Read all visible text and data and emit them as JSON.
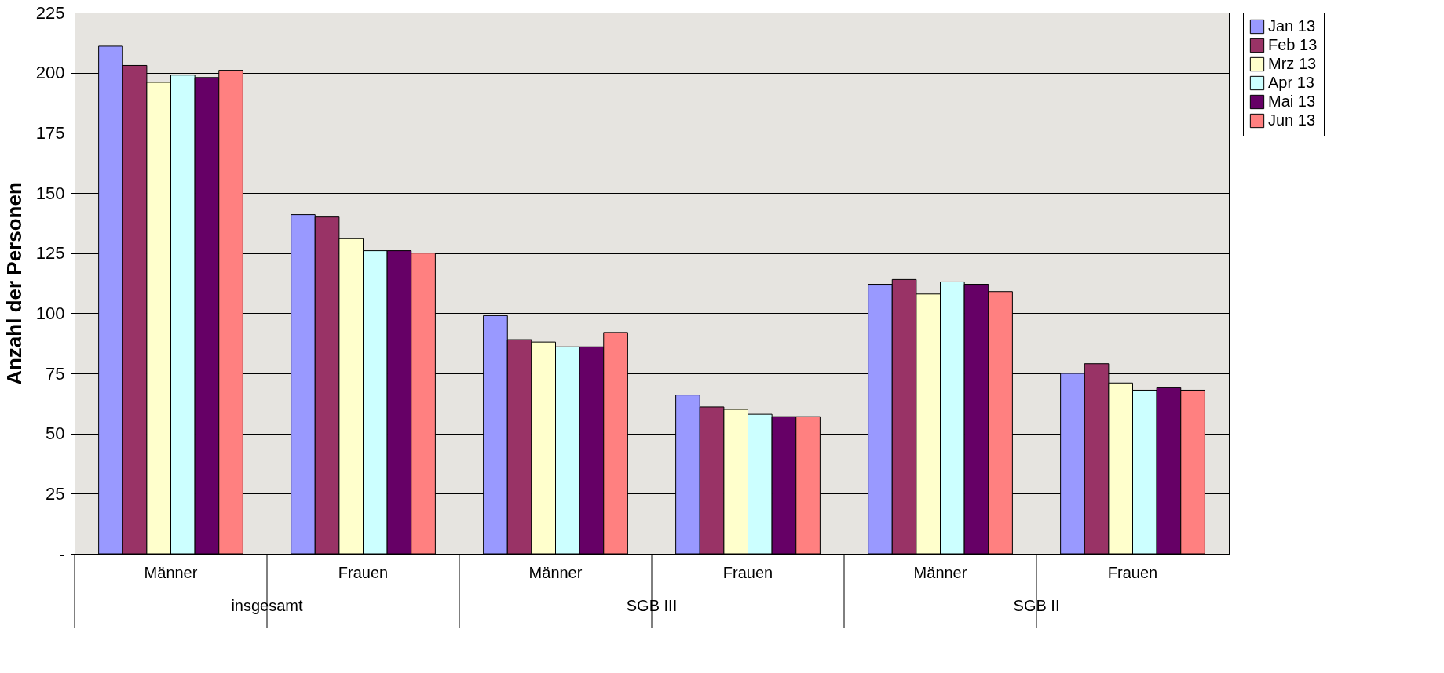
{
  "chart_data": {
    "type": "bar",
    "ylabel": "Anzahl der Personen",
    "categories": [
      "Männer",
      "Frauen",
      "Männer",
      "Frauen",
      "Männer",
      "Frauen"
    ],
    "annotations": [
      "insgesamt",
      "SGB III",
      "SGB II"
    ],
    "series": [
      {
        "name": "Jan 13",
        "color": "#9999ff",
        "values": [
          211,
          141,
          99,
          66,
          112,
          75
        ]
      },
      {
        "name": "Feb 13",
        "color": "#993366",
        "values": [
          203,
          140,
          89,
          61,
          114,
          79
        ]
      },
      {
        "name": "Mrz 13",
        "color": "#ffffcc",
        "values": [
          196,
          131,
          88,
          60,
          108,
          71
        ]
      },
      {
        "name": "Apr 13",
        "color": "#ccffff",
        "values": [
          199,
          126,
          86,
          58,
          113,
          68
        ]
      },
      {
        "name": "Mai 13",
        "color": "#660066",
        "values": [
          198,
          126,
          86,
          57,
          112,
          69
        ]
      },
      {
        "name": "Jun 13",
        "color": "#ff8080",
        "values": [
          201,
          125,
          92,
          57,
          109,
          68
        ]
      }
    ],
    "ylim": [
      0,
      225
    ],
    "yticks": [
      {
        "value": 0,
        "label": "-"
      },
      25,
      50,
      75,
      100,
      125,
      150,
      175,
      200,
      225
    ],
    "grid": "y",
    "legend": "right"
  }
}
